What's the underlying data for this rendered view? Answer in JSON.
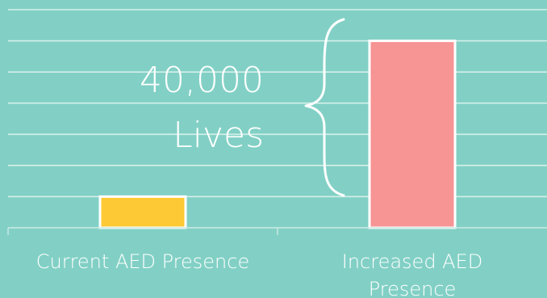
{
  "chart_data": {
    "type": "bar",
    "categories": [
      "Current AED Presence",
      "Increased AED Presence"
    ],
    "category_label_lines": [
      [
        "Current AED Presence"
      ],
      [
        "Increased AED",
        "Presence"
      ]
    ],
    "values": [
      1,
      6
    ],
    "ylim": [
      0,
      7
    ],
    "grid": true,
    "colors": {
      "background": "#82d0c5",
      "bars": [
        "#fdca35",
        "#f79494"
      ],
      "bar_border": "#ffffff",
      "grid": "#d5efe9",
      "text": "#ffffff"
    },
    "annotation": {
      "line1": "40,000",
      "line2": "Lives",
      "marker": "curly-brace"
    }
  }
}
